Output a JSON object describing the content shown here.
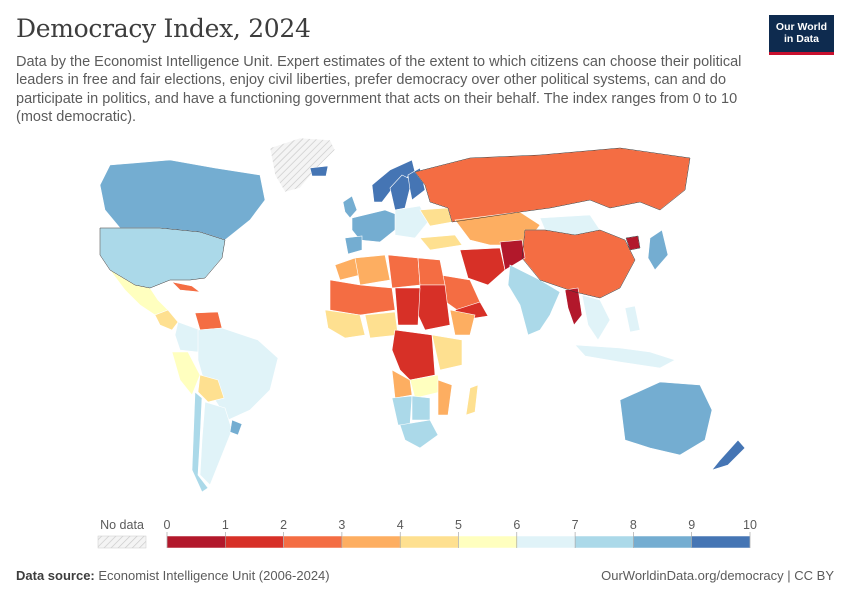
{
  "header": {
    "title": "Democracy Index, 2024",
    "subtitle": "Data by the Economist Intelligence Unit. Expert estimates of the extent to which citizens can choose their political leaders in free and fair elections, enjoy civil liberties, prefer democracy over other political systems, can and do participate in politics, and have a functioning government that acts on their behalf. The index ranges from 0 to 10 (most democratic)."
  },
  "logo": {
    "line1": "Our World",
    "line2": "in Data"
  },
  "legend": {
    "no_data_label": "No data",
    "ticks": [
      "0",
      "1",
      "2",
      "3",
      "4",
      "5",
      "6",
      "7",
      "8",
      "9",
      "10"
    ],
    "bins": [
      {
        "from": 0,
        "to": 1,
        "color": "#b2182b"
      },
      {
        "from": 1,
        "to": 2,
        "color": "#d73027"
      },
      {
        "from": 2,
        "to": 3,
        "color": "#f46d43"
      },
      {
        "from": 3,
        "to": 4,
        "color": "#fdae61"
      },
      {
        "from": 4,
        "to": 5,
        "color": "#fee090"
      },
      {
        "from": 5,
        "to": 6,
        "color": "#ffffbf"
      },
      {
        "from": 6,
        "to": 7,
        "color": "#e0f3f8"
      },
      {
        "from": 7,
        "to": 8,
        "color": "#abd9e9"
      },
      {
        "from": 8,
        "to": 9,
        "color": "#74add1"
      },
      {
        "from": 9,
        "to": 10,
        "color": "#4575b4"
      }
    ],
    "no_data_color": "#eeeeee"
  },
  "regions": [
    {
      "name": "Greenland",
      "bin": null
    },
    {
      "name": "Canada",
      "bin": 8
    },
    {
      "name": "United States",
      "bin": 7
    },
    {
      "name": "Mexico",
      "bin": 5
    },
    {
      "name": "Central America",
      "bin": 4
    },
    {
      "name": "Cuba",
      "bin": 2
    },
    {
      "name": "Venezuela",
      "bin": 2
    },
    {
      "name": "Colombia",
      "bin": 6
    },
    {
      "name": "Peru",
      "bin": 5
    },
    {
      "name": "Brazil",
      "bin": 6
    },
    {
      "name": "Bolivia",
      "bin": 4
    },
    {
      "name": "Argentina",
      "bin": 6
    },
    {
      "name": "Chile",
      "bin": 7
    },
    {
      "name": "Uruguay",
      "bin": 8
    },
    {
      "name": "Iceland",
      "bin": 9
    },
    {
      "name": "Norway",
      "bin": 9
    },
    {
      "name": "Sweden",
      "bin": 9
    },
    {
      "name": "Finland",
      "bin": 9
    },
    {
      "name": "United Kingdom",
      "bin": 8
    },
    {
      "name": "Western Europe",
      "bin": 8
    },
    {
      "name": "Spain",
      "bin": 8
    },
    {
      "name": "Eastern Europe",
      "bin": 6
    },
    {
      "name": "Ukraine",
      "bin": 4
    },
    {
      "name": "Russia",
      "bin": 2
    },
    {
      "name": "Turkey",
      "bin": 4
    },
    {
      "name": "Kazakhstan",
      "bin": 3
    },
    {
      "name": "Mongolia",
      "bin": 6
    },
    {
      "name": "China",
      "bin": 2
    },
    {
      "name": "North Korea",
      "bin": 0
    },
    {
      "name": "Japan",
      "bin": 8
    },
    {
      "name": "Iran",
      "bin": 1
    },
    {
      "name": "Afghanistan",
      "bin": 0
    },
    {
      "name": "Saudi Arabia",
      "bin": 2
    },
    {
      "name": "Yemen",
      "bin": 1
    },
    {
      "name": "India",
      "bin": 7
    },
    {
      "name": "Myanmar",
      "bin": 0
    },
    {
      "name": "Southeast Asia",
      "bin": 6
    },
    {
      "name": "Indonesia",
      "bin": 6
    },
    {
      "name": "Philippines",
      "bin": 6
    },
    {
      "name": "Australia",
      "bin": 8
    },
    {
      "name": "New Zealand",
      "bin": 9
    },
    {
      "name": "Morocco",
      "bin": 3
    },
    {
      "name": "Algeria",
      "bin": 3
    },
    {
      "name": "Libya",
      "bin": 2
    },
    {
      "name": "Egypt",
      "bin": 2
    },
    {
      "name": "Sahel",
      "bin": 2
    },
    {
      "name": "Sudan",
      "bin": 1
    },
    {
      "name": "Chad",
      "bin": 1
    },
    {
      "name": "Ethiopia",
      "bin": 3
    },
    {
      "name": "West Africa",
      "bin": 4
    },
    {
      "name": "Nigeria",
      "bin": 4
    },
    {
      "name": "DR Congo",
      "bin": 1
    },
    {
      "name": "East Africa",
      "bin": 4
    },
    {
      "name": "Angola",
      "bin": 3
    },
    {
      "name": "Zambia",
      "bin": 5
    },
    {
      "name": "Namibia",
      "bin": 7
    },
    {
      "name": "Botswana",
      "bin": 7
    },
    {
      "name": "South Africa",
      "bin": 7
    },
    {
      "name": "Madagascar",
      "bin": 4
    },
    {
      "name": "Mozambique",
      "bin": 3
    }
  ],
  "footer": {
    "source_label": "Data source:",
    "source": "Economist Intelligence Unit (2006-2024)",
    "url": "OurWorldinData.org/democracy | CC BY"
  }
}
